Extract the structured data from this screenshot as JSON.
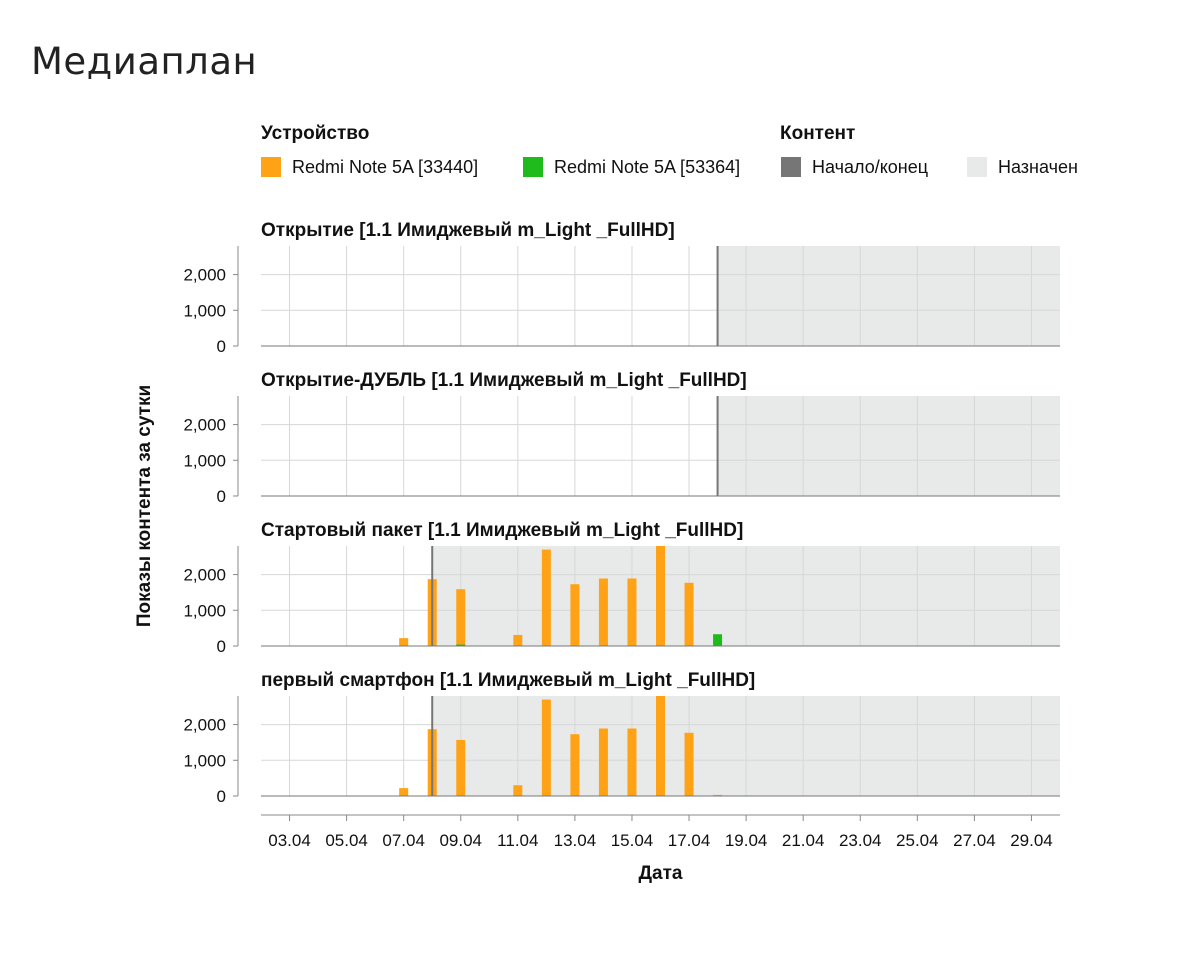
{
  "page": {
    "title": "Медиаплан"
  },
  "legend": {
    "device_title": "Устройство",
    "content_title": "Контент",
    "devices": [
      {
        "label": "Redmi Note 5A [33440]",
        "color": "#FFA216"
      },
      {
        "label": "Redmi Note 5A [53364]",
        "color": "#1FBB1C"
      }
    ],
    "content": [
      {
        "label": "Начало/конец",
        "color": "#767676"
      },
      {
        "label": "Назначен",
        "color": "#E8E9E9"
      }
    ]
  },
  "chart_data": {
    "type": "bar",
    "title": "Медиаплан",
    "xlabel": "Дата",
    "ylabel": "Показы контента за сутки",
    "x_ticks": [
      "03.04",
      "05.04",
      "07.04",
      "09.04",
      "11.04",
      "13.04",
      "15.04",
      "17.04",
      "19.04",
      "21.04",
      "23.04",
      "25.04",
      "27.04",
      "29.04"
    ],
    "x_range": [
      "02.04",
      "30.04"
    ],
    "ylim": [
      0,
      2800
    ],
    "y_ticks": [
      0,
      1000,
      2000
    ],
    "y_tick_labels": [
      "0",
      "1,000",
      "2,000"
    ],
    "grid": true,
    "legend_position": "top",
    "facets": [
      {
        "title": "Открытие [1.1 Имиджевый m_Light _FullHD]",
        "marker": "18.04",
        "assigned_range": [
          "18.04",
          "30.04"
        ],
        "series": [
          {
            "name": "Redmi Note 5A [33440]",
            "points": []
          },
          {
            "name": "Redmi Note 5A [53364]",
            "points": []
          }
        ]
      },
      {
        "title": "Открытие-ДУБЛЬ [1.1 Имиджевый m_Light _FullHD]",
        "marker": "18.04",
        "assigned_range": [
          "18.04",
          "30.04"
        ],
        "series": [
          {
            "name": "Redmi Note 5A [33440]",
            "points": []
          },
          {
            "name": "Redmi Note 5A [53364]",
            "points": []
          }
        ]
      },
      {
        "title": "Стартовый пакет [1.1 Имиджевый m_Light _FullHD]",
        "marker": "08.04",
        "assigned_range": [
          "08.04",
          "30.04"
        ],
        "series": [
          {
            "name": "Redmi Note 5A [33440]",
            "points": [
              {
                "x": "07.04",
                "y": 220
              },
              {
                "x": "08.04",
                "y": 1870
              },
              {
                "x": "09.04",
                "y": 1590
              },
              {
                "x": "11.04",
                "y": 310
              },
              {
                "x": "12.04",
                "y": 2700
              },
              {
                "x": "13.04",
                "y": 1730
              },
              {
                "x": "14.04",
                "y": 1890
              },
              {
                "x": "15.04",
                "y": 1890
              },
              {
                "x": "16.04",
                "y": 2800
              },
              {
                "x": "17.04",
                "y": 1770
              }
            ]
          },
          {
            "name": "Redmi Note 5A [53364]",
            "points": [
              {
                "x": "09.04",
                "y": 40
              },
              {
                "x": "18.04",
                "y": 330
              }
            ]
          }
        ]
      },
      {
        "title": "первый смартфон [1.1 Имиджевый m_Light _FullHD]",
        "marker": "08.04",
        "assigned_range": [
          "08.04",
          "30.04"
        ],
        "series": [
          {
            "name": "Redmi Note 5A [33440]",
            "points": [
              {
                "x": "07.04",
                "y": 220
              },
              {
                "x": "08.04",
                "y": 1870
              },
              {
                "x": "09.04",
                "y": 1570
              },
              {
                "x": "11.04",
                "y": 300
              },
              {
                "x": "12.04",
                "y": 2700
              },
              {
                "x": "13.04",
                "y": 1730
              },
              {
                "x": "14.04",
                "y": 1890
              },
              {
                "x": "15.04",
                "y": 1890
              },
              {
                "x": "16.04",
                "y": 2800
              },
              {
                "x": "17.04",
                "y": 1770
              },
              {
                "x": "18.04",
                "y": 30
              }
            ]
          },
          {
            "name": "Redmi Note 5A [53364]",
            "points": []
          }
        ]
      }
    ]
  }
}
